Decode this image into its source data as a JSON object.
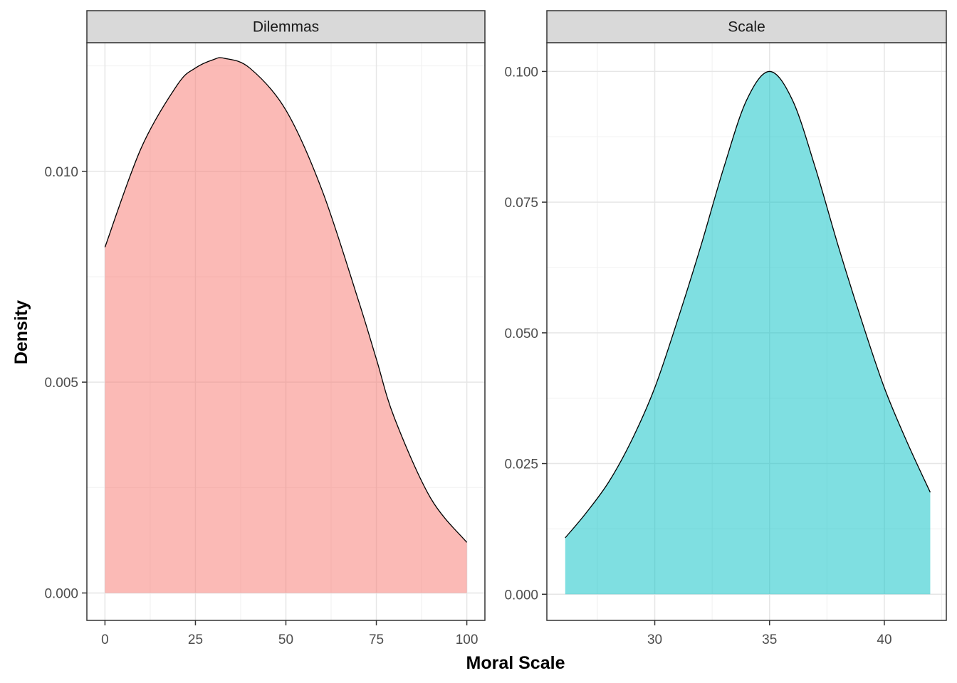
{
  "chart_data": {
    "type": "area",
    "xlabel": "Moral Scale",
    "ylabel": "Density",
    "grid": true,
    "legend": "none",
    "panels": [
      {
        "name": "Dilemmas",
        "color": "#F8766D",
        "x_ticks": [
          0,
          25,
          50,
          75,
          100
        ],
        "y_ticks": [
          0.0,
          0.005,
          0.01
        ],
        "y_tick_labels": [
          "0.000",
          "0.005",
          "0.010"
        ],
        "xlim": [
          -5,
          105
        ],
        "ylim": [
          -0.00065,
          0.01305
        ],
        "x": [
          0,
          10,
          20,
          25,
          30,
          33,
          40,
          50,
          60,
          70,
          75,
          80,
          90,
          100
        ],
        "y": [
          0.0082,
          0.01055,
          0.01205,
          0.01245,
          0.01265,
          0.01268,
          0.01245,
          0.01145,
          0.00955,
          0.00695,
          0.00555,
          0.00415,
          0.00225,
          0.0012
        ]
      },
      {
        "name": "Scale",
        "color": "#00BFC4",
        "x_ticks": [
          30,
          35,
          40
        ],
        "y_ticks": [
          0.0,
          0.025,
          0.05,
          0.075,
          0.1
        ],
        "y_tick_labels": [
          "0.000",
          "0.025",
          "0.050",
          "0.075",
          "0.100"
        ],
        "xlim": [
          25.3,
          42.7
        ],
        "ylim": [
          -0.005,
          0.1055
        ],
        "x": [
          26.1,
          27,
          28,
          29,
          30,
          31,
          32,
          33,
          34,
          35,
          36,
          37,
          38,
          39,
          40,
          41,
          42
        ],
        "y": [
          0.0108,
          0.0155,
          0.0215,
          0.0295,
          0.0395,
          0.0525,
          0.0665,
          0.0815,
          0.0945,
          0.1,
          0.0945,
          0.0815,
          0.0665,
          0.0525,
          0.0395,
          0.029,
          0.0195
        ]
      }
    ]
  }
}
